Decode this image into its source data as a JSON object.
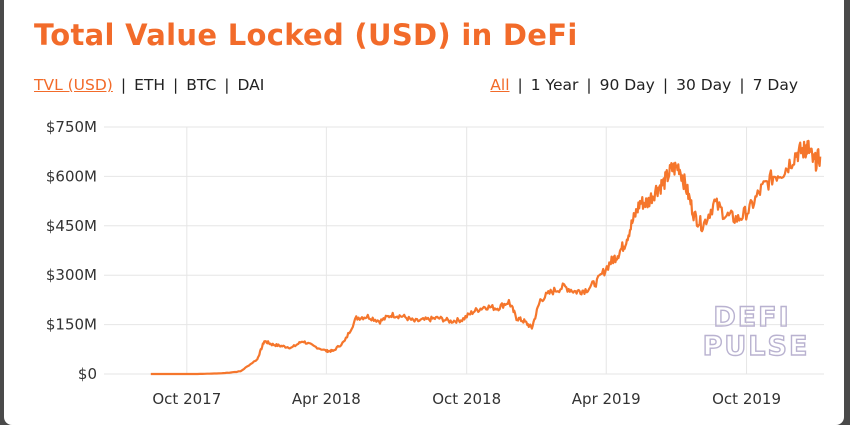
{
  "header": {
    "title": "Total Value Locked (USD) in DeFi"
  },
  "metric_tabs": [
    {
      "label": "TVL (USD)",
      "active": true
    },
    {
      "label": "ETH",
      "active": false
    },
    {
      "label": "BTC",
      "active": false
    },
    {
      "label": "DAI",
      "active": false
    }
  ],
  "range_tabs": [
    {
      "label": "All",
      "active": true
    },
    {
      "label": "1 Year",
      "active": false
    },
    {
      "label": "90 Day",
      "active": false
    },
    {
      "label": "30 Day",
      "active": false
    },
    {
      "label": "7 Day",
      "active": false
    }
  ],
  "separator": "|",
  "watermark": {
    "line1": "DEFI",
    "line2": "PULSE"
  },
  "colors": {
    "accent": "#f26b2a",
    "line": "#f5762c",
    "grid": "#e6e6e6"
  },
  "chart_data": {
    "type": "line",
    "title": "Total Value Locked (USD) in DeFi",
    "xlabel": "",
    "ylabel": "",
    "grid": true,
    "x_range": [
      "2017-06-15",
      "2020-01-10"
    ],
    "ylim": [
      0,
      750
    ],
    "y_ticks": [
      {
        "value": 0,
        "label": "$0"
      },
      {
        "value": 150,
        "label": "$150M"
      },
      {
        "value": 300,
        "label": "$300M"
      },
      {
        "value": 450,
        "label": "$450M"
      },
      {
        "value": 600,
        "label": "$600M"
      },
      {
        "value": 750,
        "label": "$750M"
      }
    ],
    "x_ticks": [
      {
        "value": "2017-10-01",
        "label": "Oct 2017"
      },
      {
        "value": "2018-04-01",
        "label": "Apr 2018"
      },
      {
        "value": "2018-10-01",
        "label": "Oct 2018"
      },
      {
        "value": "2019-04-01",
        "label": "Apr 2019"
      },
      {
        "value": "2019-10-01",
        "label": "Oct 2019"
      }
    ],
    "series": [
      {
        "x": [
          "2017-08-15",
          "2017-09-15",
          "2017-10-15",
          "2017-11-15",
          "2017-12-10",
          "2018-01-01",
          "2018-01-10",
          "2018-01-20",
          "2018-02-01",
          "2018-02-15",
          "2018-03-01",
          "2018-03-15",
          "2018-04-01",
          "2018-04-10",
          "2018-04-25",
          "2018-05-10",
          "2018-05-25",
          "2018-06-10",
          "2018-06-25",
          "2018-07-10",
          "2018-07-25",
          "2018-08-10",
          "2018-08-25",
          "2018-09-10",
          "2018-09-25",
          "2018-10-10",
          "2018-10-25",
          "2018-11-10",
          "2018-11-25",
          "2018-12-05",
          "2018-12-15",
          "2018-12-25",
          "2019-01-05",
          "2019-01-20",
          "2019-02-05",
          "2019-02-20",
          "2019-03-05",
          "2019-03-20",
          "2019-04-05",
          "2019-04-15",
          "2019-04-25",
          "2019-05-05",
          "2019-05-15",
          "2019-05-25",
          "2019-06-05",
          "2019-06-15",
          "2019-06-25",
          "2019-07-05",
          "2019-07-15",
          "2019-07-25",
          "2019-08-05",
          "2019-08-20",
          "2019-09-05",
          "2019-09-20",
          "2019-10-05",
          "2019-10-20",
          "2019-11-05",
          "2019-11-20",
          "2019-12-05",
          "2019-12-15",
          "2019-12-20",
          "2019-12-28",
          "2020-01-05"
        ],
        "y": [
          0,
          0,
          0,
          2,
          8,
          45,
          100,
          90,
          85,
          80,
          100,
          85,
          70,
          70,
          100,
          170,
          175,
          160,
          180,
          175,
          160,
          165,
          170,
          160,
          165,
          190,
          205,
          200,
          220,
          170,
          160,
          140,
          225,
          250,
          265,
          250,
          255,
          280,
          335,
          360,
          395,
          460,
          520,
          520,
          560,
          580,
          620,
          630,
          560,
          480,
          450,
          520,
          480,
          470,
          500,
          560,
          600,
          620,
          670,
          680,
          690,
          640,
          660
        ]
      }
    ]
  }
}
